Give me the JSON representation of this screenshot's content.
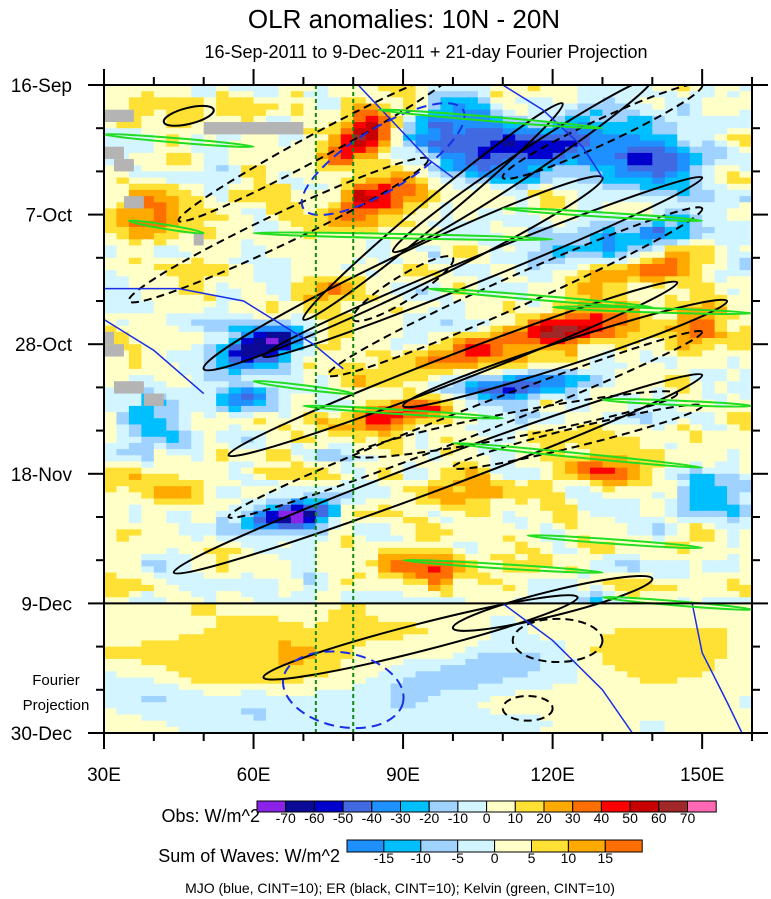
{
  "chart_data": {
    "type": "heatmap",
    "title": "OLR anomalies: 10N - 20N",
    "subtitle": "16-Sep-2011 to 9-Dec-2011 + 21-day Fourier Projection",
    "x_axis": {
      "range": [
        30,
        160
      ],
      "ticks": [
        30,
        60,
        90,
        120,
        150
      ],
      "tick_labels": [
        "30E",
        "60E",
        "90E",
        "120E",
        "150E"
      ],
      "minor_step": 10
    },
    "y_axis": {
      "range_days": [
        0,
        105
      ],
      "ticks_days": [
        0,
        21,
        42,
        63,
        84,
        105
      ],
      "tick_labels": [
        "16-Sep",
        "7-Oct",
        "28-Oct",
        "18-Nov",
        "9-Dec",
        "30-Dec"
      ],
      "minor_step_days": 7,
      "direction": "down"
    },
    "projection_label": [
      "Fourier",
      "Projection"
    ],
    "observation_end_day": 84,
    "reference_longitudes": [
      72.5,
      80
    ],
    "missing_data_blocks": [
      [
        30,
        4,
        36,
        6
      ],
      [
        30,
        10,
        34,
        12
      ],
      [
        32,
        12,
        36,
        14
      ],
      [
        34,
        18,
        38,
        20
      ],
      [
        48,
        24,
        50,
        26
      ],
      [
        50,
        6,
        70,
        8
      ],
      [
        30,
        42,
        34,
        44
      ],
      [
        32,
        48,
        38,
        50
      ],
      [
        38,
        50,
        42,
        52
      ],
      [
        30,
        40,
        32,
        42
      ]
    ],
    "obs_colorbar": {
      "label": "Obs: W/m^2",
      "levels": [
        -70,
        -60,
        -50,
        -40,
        -30,
        -20,
        -10,
        0,
        10,
        20,
        30,
        40,
        50,
        60,
        70
      ],
      "colors": [
        "#8a22e8",
        "#0a0a96",
        "#0000cc",
        "#4169e1",
        "#1e90ff",
        "#00bfff",
        "#a0d2ff",
        "#d2f5ff",
        "#ffffc8",
        "#ffe135",
        "#ffaa00",
        "#ff6e00",
        "#ff0000",
        "#c80000",
        "#a02828",
        "#ff69b4"
      ]
    },
    "waves_colorbar": {
      "label": "Sum of Waves: W/m^2",
      "levels": [
        -15,
        -10,
        -5,
        0,
        5,
        10,
        15
      ],
      "colors": [
        "#1e90ff",
        "#00bfff",
        "#a0d2ff",
        "#d2f5ff",
        "#ffffc8",
        "#ffe135",
        "#ffaa00",
        "#ff6e00"
      ]
    },
    "obs_anomaly_features": [
      [
        62,
        42,
        -80,
        8,
        4,
        -1.5
      ],
      [
        67,
        70,
        -75,
        8,
        2.5,
        -2
      ],
      [
        58,
        51,
        -50,
        5,
        2,
        0
      ],
      [
        112,
        49,
        -65,
        10,
        2.5,
        -2
      ],
      [
        118,
        10,
        -60,
        15,
        5,
        -2
      ],
      [
        100,
        8,
        -45,
        8,
        6,
        0
      ],
      [
        140,
        12,
        -45,
        10,
        5,
        0
      ],
      [
        120,
        86,
        -55,
        10,
        2.5,
        -2
      ],
      [
        152,
        66,
        -45,
        6,
        4,
        0
      ],
      [
        135,
        25,
        -35,
        15,
        4,
        -2
      ],
      [
        40,
        55,
        -25,
        8,
        6,
        0
      ],
      [
        150,
        90,
        -30,
        8,
        4,
        0
      ],
      [
        82,
        8,
        45,
        6,
        5,
        -1
      ],
      [
        85,
        18,
        45,
        8,
        5,
        -1
      ],
      [
        90,
        53,
        50,
        10,
        3,
        -3
      ],
      [
        125,
        40,
        45,
        10,
        3,
        -2
      ],
      [
        108,
        42,
        35,
        10,
        5,
        -3
      ],
      [
        95,
        78,
        35,
        10,
        3,
        0
      ],
      [
        140,
        30,
        30,
        10,
        4,
        -2
      ],
      [
        130,
        62,
        30,
        10,
        3,
        0
      ],
      [
        38,
        20,
        30,
        6,
        5,
        0
      ],
      [
        75,
        35,
        25,
        8,
        6,
        0
      ],
      [
        150,
        40,
        25,
        6,
        4,
        0
      ],
      [
        100,
        66,
        25,
        8,
        3,
        0
      ],
      [
        45,
        65,
        20,
        8,
        5,
        0
      ]
    ],
    "projection_features": [
      [
        62,
        92,
        9,
        20,
        6,
        0
      ],
      [
        75,
        102,
        -7,
        30,
        5,
        0
      ],
      [
        105,
        95,
        -11,
        15,
        4,
        -2
      ],
      [
        140,
        92,
        8,
        15,
        4,
        0
      ],
      [
        40,
        99,
        -6,
        10,
        3,
        0
      ]
    ],
    "contours": {
      "legend": "MJO (blue, CINT=10); ER (black, CINT=10); Kelvin (green, CINT=10)",
      "er_positive": [
        [
          62,
          96,
          125,
          83,
          2.2
        ],
        [
          44,
          79,
          150,
          47,
          2.5
        ],
        [
          55,
          60,
          145,
          32,
          2.2
        ],
        [
          50,
          46,
          130,
          15,
          3
        ],
        [
          62,
          44,
          150,
          15,
          2
        ],
        [
          70,
          38,
          122,
          3,
          2
        ],
        [
          88,
          27,
          140,
          -1,
          2
        ],
        [
          90,
          52,
          155,
          35,
          2
        ],
        [
          100,
          88,
          140,
          80,
          2
        ],
        [
          42,
          6,
          52,
          4,
          1.3
        ]
      ],
      "er_negative": [
        [
          35,
          35,
          95,
          12,
          2.5
        ],
        [
          45,
          22,
          100,
          -2,
          2
        ],
        [
          55,
          70,
          150,
          40,
          2.2
        ],
        [
          75,
          47,
          150,
          20,
          2.5
        ],
        [
          80,
          60,
          145,
          50,
          2
        ],
        [
          80,
          38,
          100,
          28,
          2
        ],
        [
          110,
          15,
          150,
          0,
          2
        ],
        [
          100,
          62,
          150,
          52,
          1.5
        ],
        [
          112,
          90,
          130,
          90,
          3.5
        ],
        [
          110,
          101,
          120,
          101,
          2
        ]
      ],
      "mjo_positive": [
        [
          [
            30,
            33
          ],
          [
            45,
            33
          ],
          [
            58,
            35
          ],
          [
            72,
            42
          ],
          [
            78,
            46
          ]
        ],
        [
          [
            30,
            38
          ],
          [
            40,
            43
          ],
          [
            50,
            50
          ]
        ],
        [
          [
            81,
            0
          ],
          [
            88,
            6
          ],
          [
            95,
            12
          ],
          [
            100,
            15
          ]
        ],
        [
          [
            110,
            0
          ],
          [
            118,
            4
          ],
          [
            126,
            10
          ],
          [
            130,
            15
          ]
        ],
        [
          [
            110,
            84
          ],
          [
            120,
            90
          ],
          [
            130,
            98
          ],
          [
            136,
            105
          ]
        ],
        [
          [
            148,
            84
          ],
          [
            150,
            92
          ],
          [
            155,
            100
          ],
          [
            158,
            105
          ]
        ]
      ],
      "mjo_negative": [
        [
          70,
          20,
          102,
          4,
          5
        ],
        [
          66,
          96,
          90,
          100,
          6
        ]
      ],
      "kelvin": [
        [
          30,
          8,
          60,
          10
        ],
        [
          85,
          4,
          130,
          7
        ],
        [
          60,
          24,
          120,
          25
        ],
        [
          110,
          20,
          150,
          22
        ],
        [
          95,
          33,
          140,
          36
        ],
        [
          120,
          36,
          160,
          37
        ],
        [
          70,
          52,
          110,
          54
        ],
        [
          100,
          58,
          150,
          62
        ],
        [
          60,
          48,
          80,
          50
        ],
        [
          130,
          51,
          160,
          52
        ],
        [
          90,
          77,
          130,
          79
        ],
        [
          130,
          83,
          160,
          85
        ],
        [
          115,
          73,
          150,
          75
        ],
        [
          35,
          22,
          50,
          24
        ]
      ]
    }
  }
}
